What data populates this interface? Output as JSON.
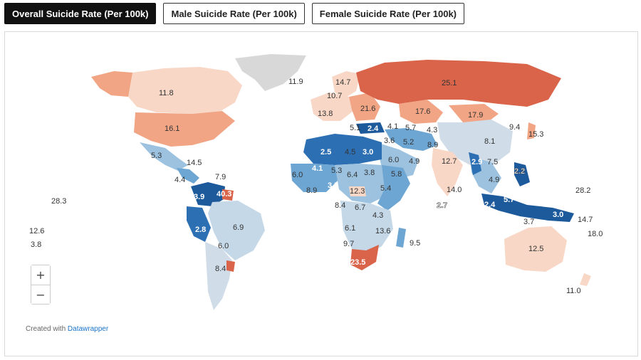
{
  "tabs": [
    {
      "label": "Overall Suicide Rate (Per 100k)",
      "active": true
    },
    {
      "label": "Male Suicide Rate (Per 100k)",
      "active": false
    },
    {
      "label": "Female Suicide Rate (Per 100k)",
      "active": false
    }
  ],
  "zoom": {
    "in": "+",
    "out": "−"
  },
  "credit": {
    "prefix": "Created with",
    "link": "Datawrapper"
  },
  "colors": {
    "high": "#d9644a",
    "mid_high": "#f1a585",
    "low_warm": "#f8d7c6",
    "neutral": "#d0dde8",
    "low": "#9cc2df",
    "lowest": "#1d5a9c",
    "no_data": "#d8d8d8"
  },
  "map_labels": {
    "greenland": "11.9",
    "canada": "11.8",
    "usa": "16.1",
    "mexico": "5.3",
    "cuba": "14.5",
    "caribbean": "7.9",
    "central_america": "4.4",
    "colombia": "3.9",
    "guyana": "40.3",
    "ecuador": "2.8",
    "brazil": "6.9",
    "bolivia": "6.0",
    "uruguay": "8.4",
    "pacific_1": "28.3",
    "pacific_2": "12.6",
    "pacific_3": "3.8",
    "uk": "13.8",
    "france": "10.7",
    "scandinavia": "14.7",
    "ukraine": "21.6",
    "russia": "25.1",
    "kazakhstan": "17.6",
    "mongolia": "17.9",
    "china": "8.1",
    "korea": "9.4",
    "japan": "15.3",
    "greece": "5.1",
    "turkey": "2.4",
    "georgia": "4.1",
    "azerbaijan": "5.7",
    "turkmenistan": "4.3",
    "iraq": "3.6",
    "iran": "5.2",
    "afghanistan": "8.9",
    "algeria": "2.5",
    "libya": "4.5",
    "egypt": "3.0",
    "saudi": "6.0",
    "oman": "4.9",
    "india": "12.7",
    "myanmar": "2.9",
    "vietnam": "7.5",
    "philippines": "2.2",
    "malaysia": "4.9",
    "mauritania": "6.0",
    "mali": "4.1",
    "niger": "5.3",
    "chad": "6.4",
    "sudan": "3.8",
    "ethiopia": "5.8",
    "liberia": "8.9",
    "nigeria": "3.5",
    "car": "12.3",
    "somalia": "5.4",
    "drc": "6.7",
    "angola": "8.4",
    "tanzania": "4.3",
    "zambia": "6.1",
    "mozambique": "13.6",
    "namibia": "9.7",
    "south_africa": "23.5",
    "madagascar": "9.5",
    "sri_lanka": "14.0",
    "maldives": "2.7",
    "indonesia_w": "2.4",
    "indonesia_c": "5.7",
    "indonesia_e": "3.0",
    "timor": "3.7",
    "png_region": "28.2",
    "solomon": "14.7",
    "vanuatu": "18.0",
    "australia": "12.5",
    "new_zealand": "11.0"
  }
}
